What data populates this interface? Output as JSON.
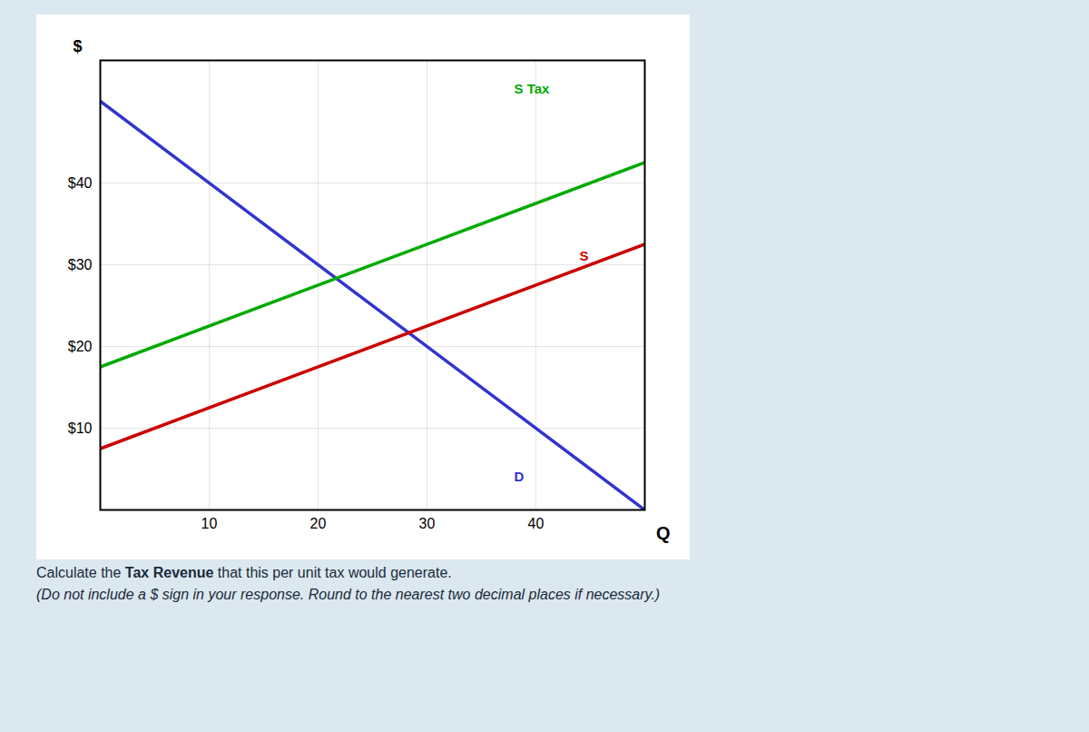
{
  "chart_data": {
    "type": "line",
    "xlabel": "Q",
    "ylabel": "$",
    "xlim": [
      0,
      50
    ],
    "ylim": [
      0,
      55
    ],
    "xticks": [
      10,
      20,
      30,
      40
    ],
    "yticks": [
      {
        "value": 10,
        "label": "$10"
      },
      {
        "value": 20,
        "label": "$20"
      },
      {
        "value": 30,
        "label": "$30"
      },
      {
        "value": 40,
        "label": "$40"
      }
    ],
    "grid": true,
    "series": [
      {
        "name": "D",
        "color": "#3333cc",
        "x": [
          0,
          50
        ],
        "values": [
          50,
          0
        ],
        "label_x": 38,
        "label_y": 4
      },
      {
        "name": "S",
        "color": "#cc0000",
        "x": [
          0,
          50
        ],
        "values": [
          7.5,
          32.5
        ],
        "label_x": 44,
        "label_y": 31
      },
      {
        "name": "S Tax",
        "color": "#00aa00",
        "x": [
          0,
          50
        ],
        "values": [
          17.5,
          42.5
        ],
        "label_x": 38,
        "label_y": 51
      }
    ],
    "caption_segments": [
      "Calculate the ",
      "Tax Revenue",
      " that this per unit tax would generate."
    ],
    "note": "(Do not include a $ sign in your response. Round to the nearest two decimal places if necessary.)"
  }
}
